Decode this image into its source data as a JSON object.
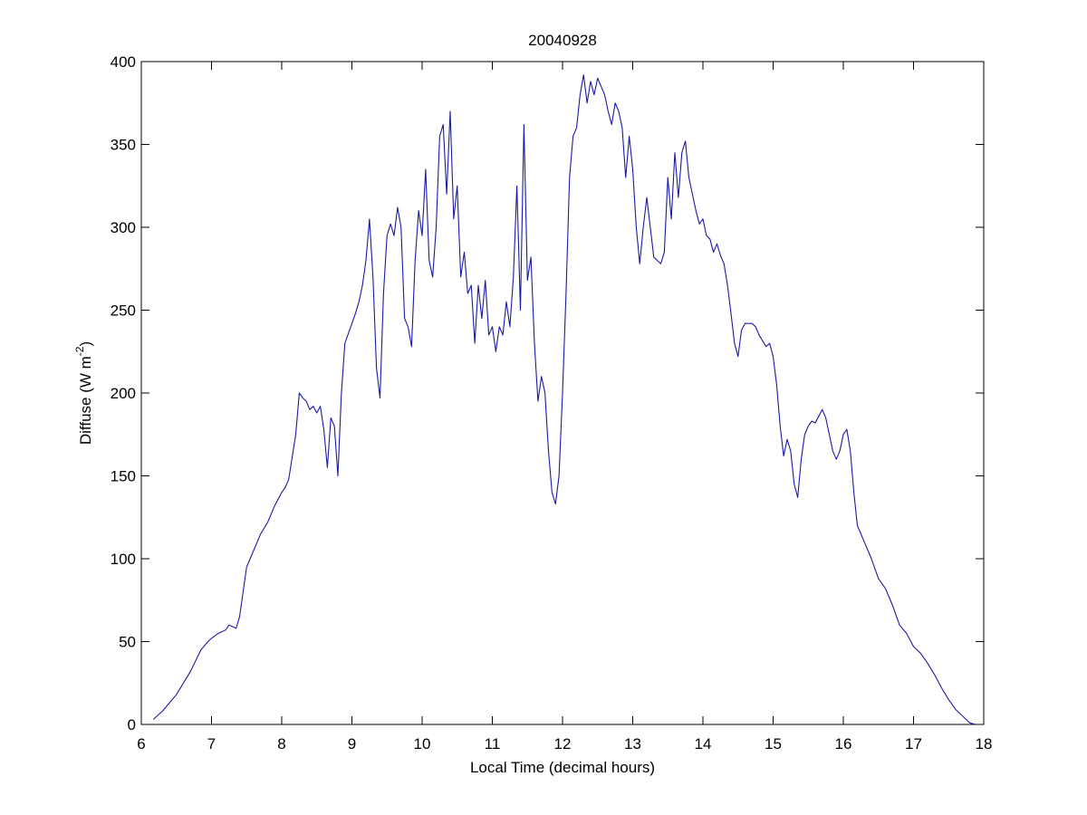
{
  "chart_data": {
    "type": "line",
    "title": "20040928",
    "xlabel": "Local Time (decimal hours)",
    "ylabel": [
      "Diffuse (W m",
      "-2",
      ")"
    ],
    "xlim": [
      6,
      18
    ],
    "xticks": [
      6,
      7,
      8,
      9,
      10,
      11,
      12,
      13,
      14,
      15,
      16,
      17,
      18
    ],
    "ylim": [
      0,
      400
    ],
    "yticks": [
      0,
      50,
      100,
      150,
      200,
      250,
      300,
      350,
      400
    ],
    "grid": false,
    "series": [
      {
        "color": "#1a1aa6",
        "x": [
          6.17,
          6.3,
          6.5,
          6.7,
          6.85,
          6.95,
          7.0,
          7.1,
          7.2,
          7.25,
          7.35,
          7.4,
          7.45,
          7.5,
          7.6,
          7.7,
          7.8,
          7.9,
          8.0,
          8.05,
          8.1,
          8.2,
          8.25,
          8.3,
          8.35,
          8.4,
          8.45,
          8.5,
          8.55,
          8.6,
          8.65,
          8.7,
          8.75,
          8.8,
          8.85,
          8.9,
          9.0,
          9.05,
          9.1,
          9.15,
          9.2,
          9.25,
          9.3,
          9.35,
          9.4,
          9.45,
          9.5,
          9.55,
          9.6,
          9.65,
          9.7,
          9.75,
          9.8,
          9.85,
          9.9,
          9.95,
          10.0,
          10.05,
          10.1,
          10.15,
          10.2,
          10.25,
          10.3,
          10.35,
          10.4,
          10.45,
          10.5,
          10.55,
          10.6,
          10.65,
          10.7,
          10.75,
          10.8,
          10.85,
          10.9,
          10.95,
          11.0,
          11.05,
          11.1,
          11.15,
          11.2,
          11.25,
          11.3,
          11.35,
          11.4,
          11.45,
          11.5,
          11.55,
          11.6,
          11.65,
          11.7,
          11.75,
          11.8,
          11.85,
          11.9,
          11.95,
          12.0,
          12.05,
          12.1,
          12.15,
          12.2,
          12.25,
          12.3,
          12.35,
          12.4,
          12.45,
          12.5,
          12.55,
          12.6,
          12.65,
          12.7,
          12.75,
          12.8,
          12.85,
          12.9,
          12.95,
          13.0,
          13.05,
          13.1,
          13.15,
          13.2,
          13.25,
          13.3,
          13.35,
          13.4,
          13.45,
          13.5,
          13.55,
          13.6,
          13.65,
          13.7,
          13.75,
          13.8,
          13.85,
          13.9,
          13.95,
          14.0,
          14.05,
          14.1,
          14.15,
          14.2,
          14.25,
          14.3,
          14.35,
          14.4,
          14.45,
          14.5,
          14.55,
          14.6,
          14.7,
          14.75,
          14.8,
          14.9,
          14.95,
          15.0,
          15.05,
          15.1,
          15.15,
          15.2,
          15.25,
          15.3,
          15.35,
          15.4,
          15.45,
          15.5,
          15.55,
          15.6,
          15.7,
          15.75,
          15.8,
          15.85,
          15.9,
          15.95,
          16.0,
          16.05,
          16.1,
          16.15,
          16.2,
          16.3,
          16.4,
          16.5,
          16.6,
          16.7,
          16.8,
          16.9,
          17.0,
          17.1,
          17.2,
          17.3,
          17.4,
          17.5,
          17.6,
          17.7,
          17.8,
          17.88
        ],
        "values": [
          3,
          8,
          18,
          32,
          45,
          50,
          52,
          55,
          57,
          60,
          58,
          65,
          80,
          95,
          105,
          115,
          122,
          132,
          140,
          143,
          148,
          175,
          200,
          197,
          195,
          190,
          192,
          188,
          192,
          178,
          155,
          185,
          180,
          150,
          200,
          230,
          242,
          248,
          255,
          265,
          280,
          305,
          270,
          215,
          197,
          260,
          295,
          302,
          295,
          312,
          300,
          245,
          240,
          228,
          280,
          310,
          295,
          335,
          280,
          270,
          300,
          355,
          362,
          320,
          370,
          305,
          325,
          270,
          285,
          260,
          265,
          230,
          265,
          245,
          268,
          235,
          240,
          225,
          240,
          235,
          255,
          240,
          270,
          325,
          250,
          362,
          268,
          282,
          230,
          195,
          210,
          200,
          165,
          140,
          133,
          150,
          200,
          260,
          330,
          355,
          360,
          380,
          392,
          375,
          388,
          380,
          390,
          385,
          380,
          370,
          362,
          375,
          370,
          360,
          330,
          355,
          335,
          300,
          278,
          300,
          318,
          300,
          282,
          280,
          278,
          285,
          330,
          305,
          345,
          318,
          345,
          352,
          330,
          320,
          310,
          302,
          305,
          295,
          293,
          285,
          290,
          283,
          278,
          265,
          248,
          230,
          222,
          238,
          242,
          242,
          240,
          235,
          228,
          230,
          222,
          205,
          180,
          162,
          172,
          165,
          145,
          137,
          160,
          175,
          180,
          183,
          182,
          190,
          185,
          175,
          165,
          160,
          165,
          175,
          178,
          165,
          140,
          120,
          110,
          100,
          88,
          82,
          72,
          60,
          55,
          47,
          43,
          37,
          30,
          22,
          15,
          9,
          5,
          1,
          0
        ]
      }
    ]
  }
}
